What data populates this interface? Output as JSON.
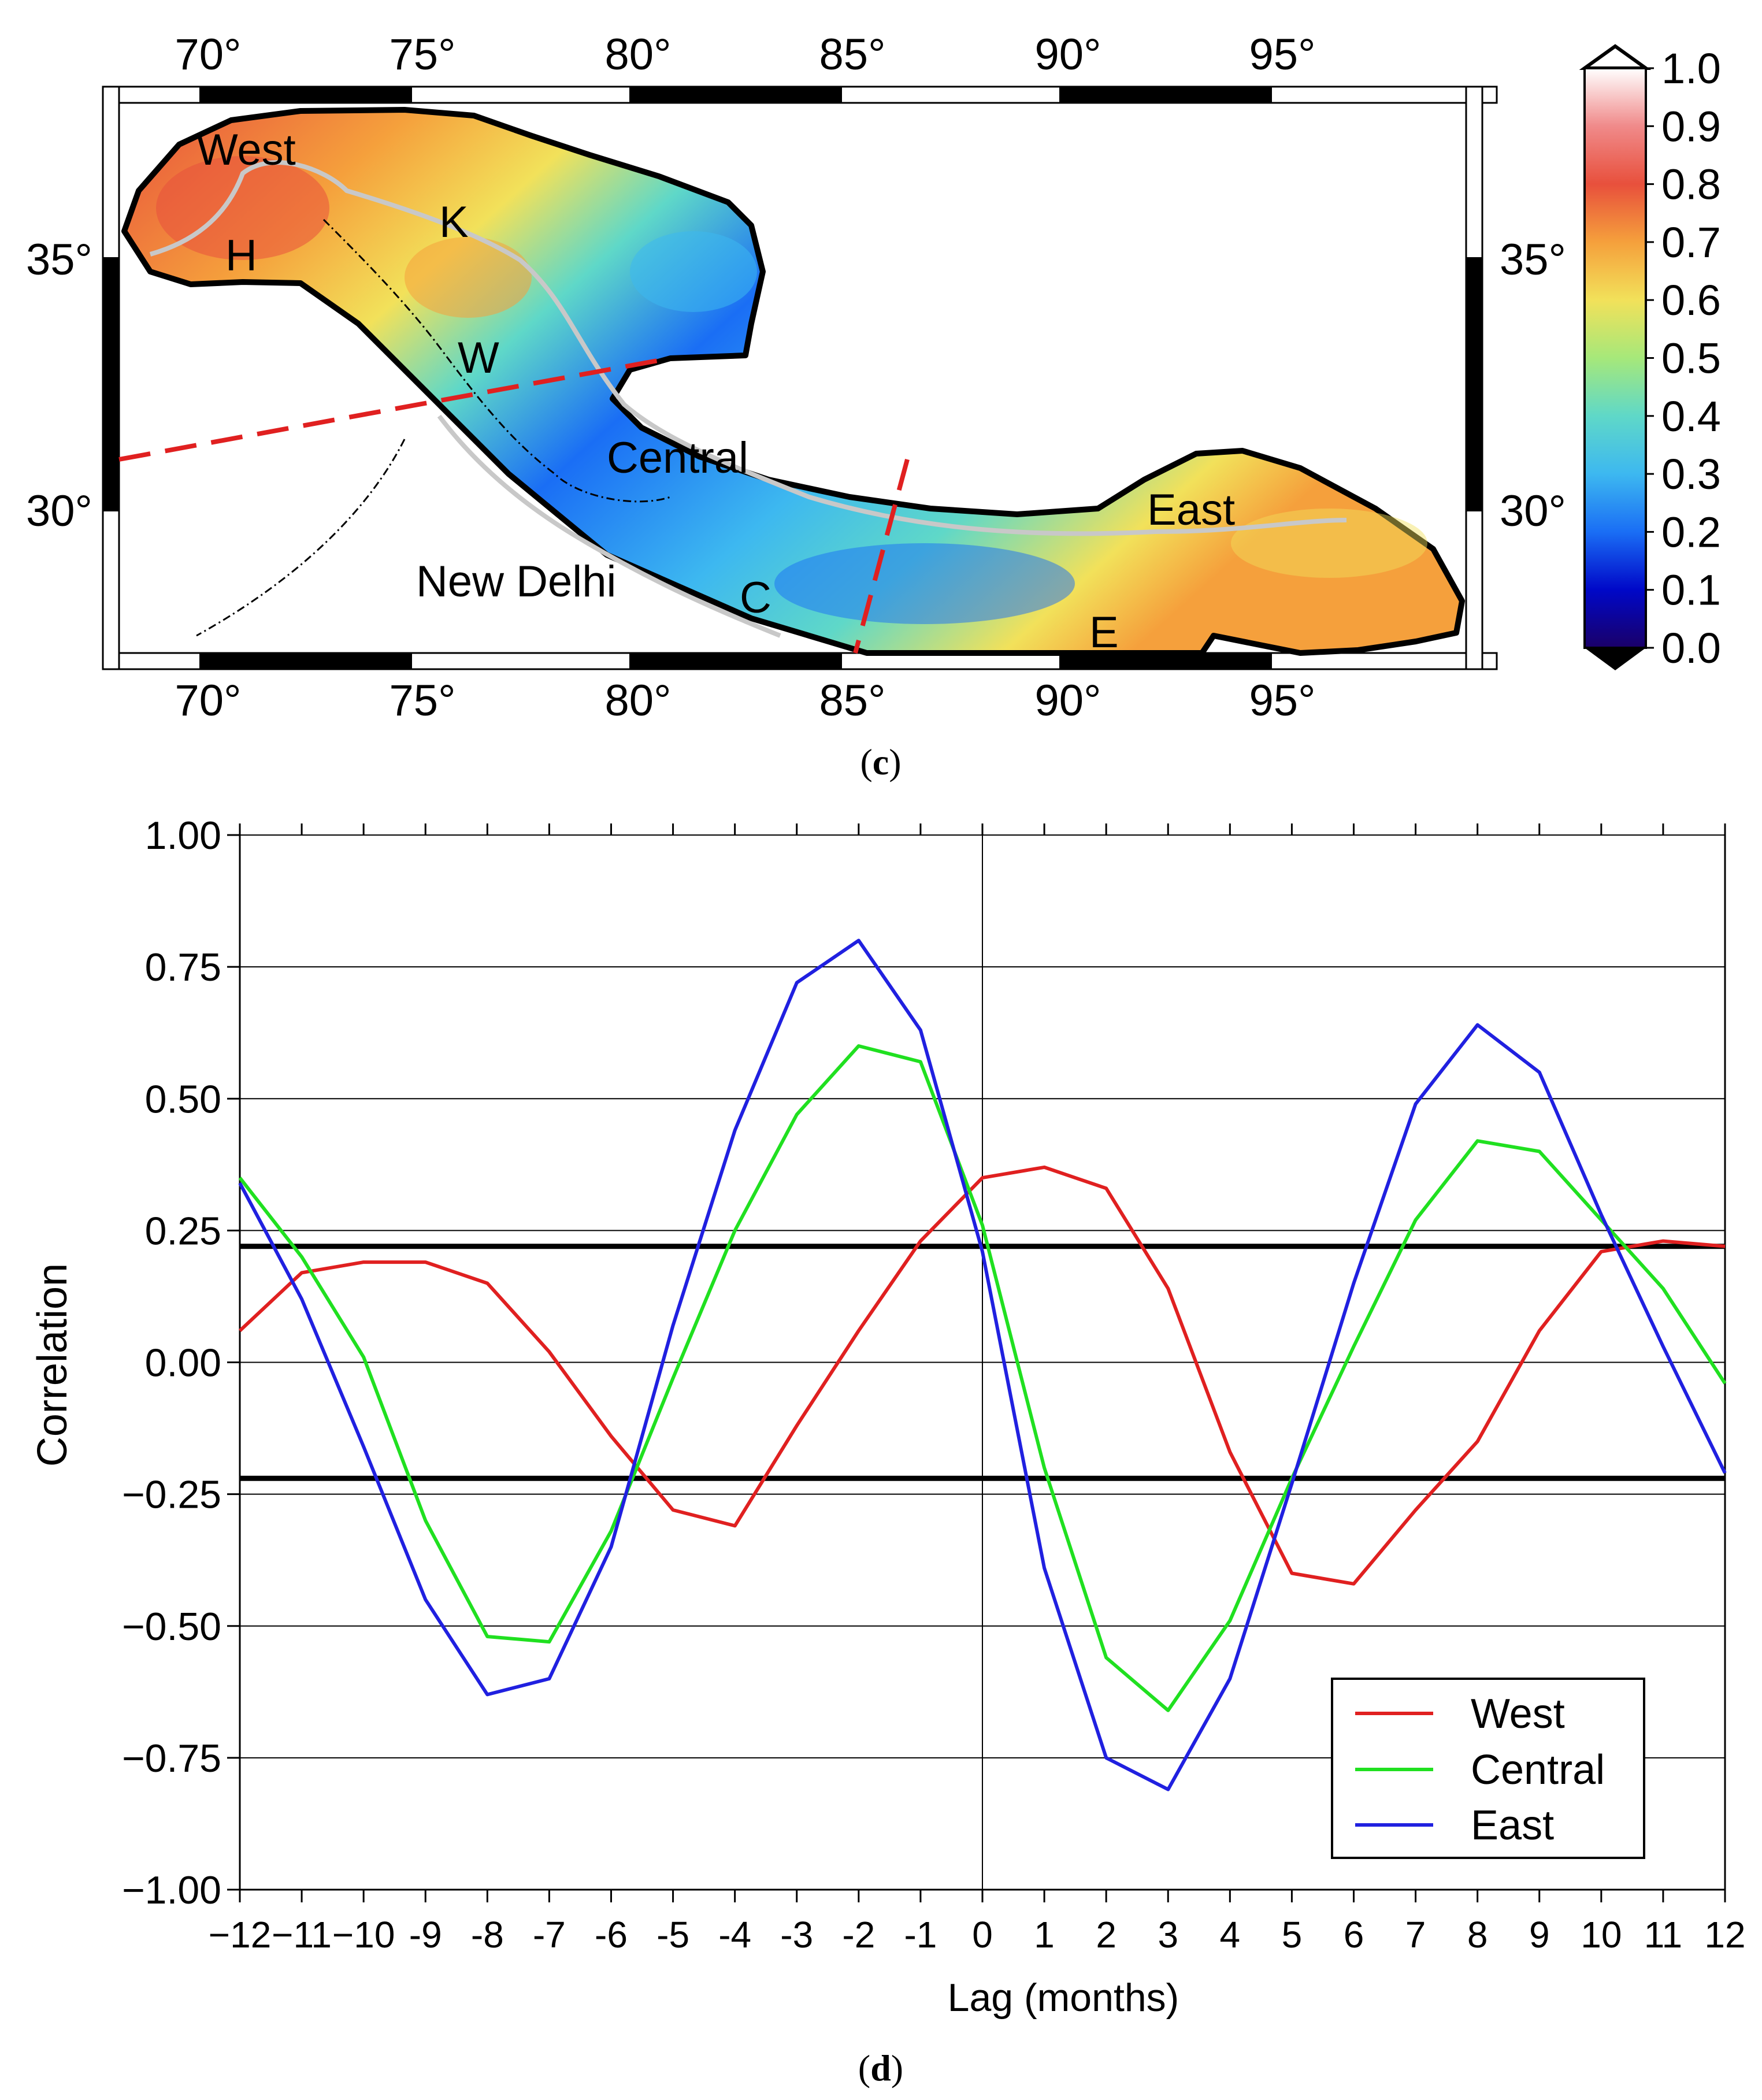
{
  "panel_c": {
    "caption_open": "(",
    "caption_letter": "c",
    "caption_close": ")",
    "lon_ticks": [
      "70°",
      "75°",
      "80°",
      "85°",
      "90°",
      "95°"
    ],
    "lat_ticks": [
      "35°",
      "30°"
    ],
    "region_labels": {
      "west": "West",
      "h": "H",
      "k": "K",
      "w": "W",
      "central": "Central",
      "east": "East",
      "new_delhi": "New Delhi",
      "c": "C",
      "e": "E"
    },
    "colorbar": {
      "ticks": [
        "1.0",
        "0.9",
        "0.8",
        "0.7",
        "0.6",
        "0.5",
        "0.4",
        "0.3",
        "0.2",
        "0.1",
        "0.0"
      ],
      "stops": [
        "#1a0068",
        "#0008c8",
        "#1a6ef5",
        "#3db8f0",
        "#5fd8c8",
        "#a6e87a",
        "#f2e15a",
        "#f5a03c",
        "#e8503c",
        "#f08a8a",
        "#ffffff"
      ]
    },
    "colors": {
      "boundary": "#000000",
      "divider": "#e02020",
      "border": "#c0c0c0"
    }
  },
  "panel_d": {
    "caption_open": "(",
    "caption_letter": "d",
    "caption_close": ")",
    "legend": {
      "west": "West",
      "central": "Central",
      "east": "East"
    }
  },
  "chart_data": {
    "type": "line",
    "title": "",
    "xlabel": "Lag (months)",
    "ylabel": "Correlation",
    "xlim": [
      -12,
      12
    ],
    "ylim": [
      -1.0,
      1.0
    ],
    "x": [
      -12,
      -11,
      -10,
      -9,
      -8,
      -7,
      -6,
      -5,
      -4,
      -3,
      -2,
      -1,
      0,
      1,
      2,
      3,
      4,
      5,
      6,
      7,
      8,
      9,
      10,
      11,
      12
    ],
    "xtick_labels": [
      "−12",
      "−11",
      "−10",
      "-9",
      "-8",
      "-7",
      "-6",
      "-5",
      "-4",
      "-3",
      "-2",
      "-1",
      "0",
      "1",
      "2",
      "3",
      "4",
      "5",
      "6",
      "7",
      "8",
      "9",
      "10",
      "11",
      "12"
    ],
    "yticks": [
      1.0,
      0.75,
      0.5,
      0.25,
      0.0,
      -0.25,
      -0.5,
      -0.75,
      -1.0
    ],
    "ytick_labels": [
      "1.00",
      "0.75",
      "0.50",
      "0.25",
      "0.00",
      "−0.25",
      "−0.50",
      "−0.75",
      "−1.00"
    ],
    "significance_levels": [
      0.22,
      -0.22
    ],
    "grid": true,
    "legend_position": "bottom-right",
    "series": [
      {
        "name": "West",
        "color": "#e02020",
        "values": [
          0.06,
          0.17,
          0.19,
          0.19,
          0.15,
          0.02,
          -0.14,
          -0.28,
          -0.31,
          -0.12,
          0.06,
          0.23,
          0.35,
          0.37,
          0.33,
          0.14,
          -0.17,
          -0.4,
          -0.42,
          -0.28,
          -0.15,
          0.06,
          0.21,
          0.23,
          0.22
        ]
      },
      {
        "name": "Central",
        "color": "#20e020",
        "values": [
          0.35,
          0.2,
          0.01,
          -0.3,
          -0.52,
          -0.53,
          -0.32,
          -0.03,
          0.25,
          0.47,
          0.6,
          0.57,
          0.26,
          -0.2,
          -0.56,
          -0.66,
          -0.49,
          -0.22,
          0.03,
          0.27,
          0.42,
          0.4,
          0.27,
          0.14,
          -0.04
        ]
      },
      {
        "name": "East",
        "color": "#2020e0",
        "values": [
          0.34,
          0.12,
          -0.16,
          -0.45,
          -0.63,
          -0.6,
          -0.35,
          0.07,
          0.44,
          0.72,
          0.8,
          0.63,
          0.21,
          -0.39,
          -0.75,
          -0.81,
          -0.6,
          -0.23,
          0.15,
          0.49,
          0.64,
          0.55,
          0.28,
          0.03,
          -0.21
        ]
      }
    ]
  }
}
